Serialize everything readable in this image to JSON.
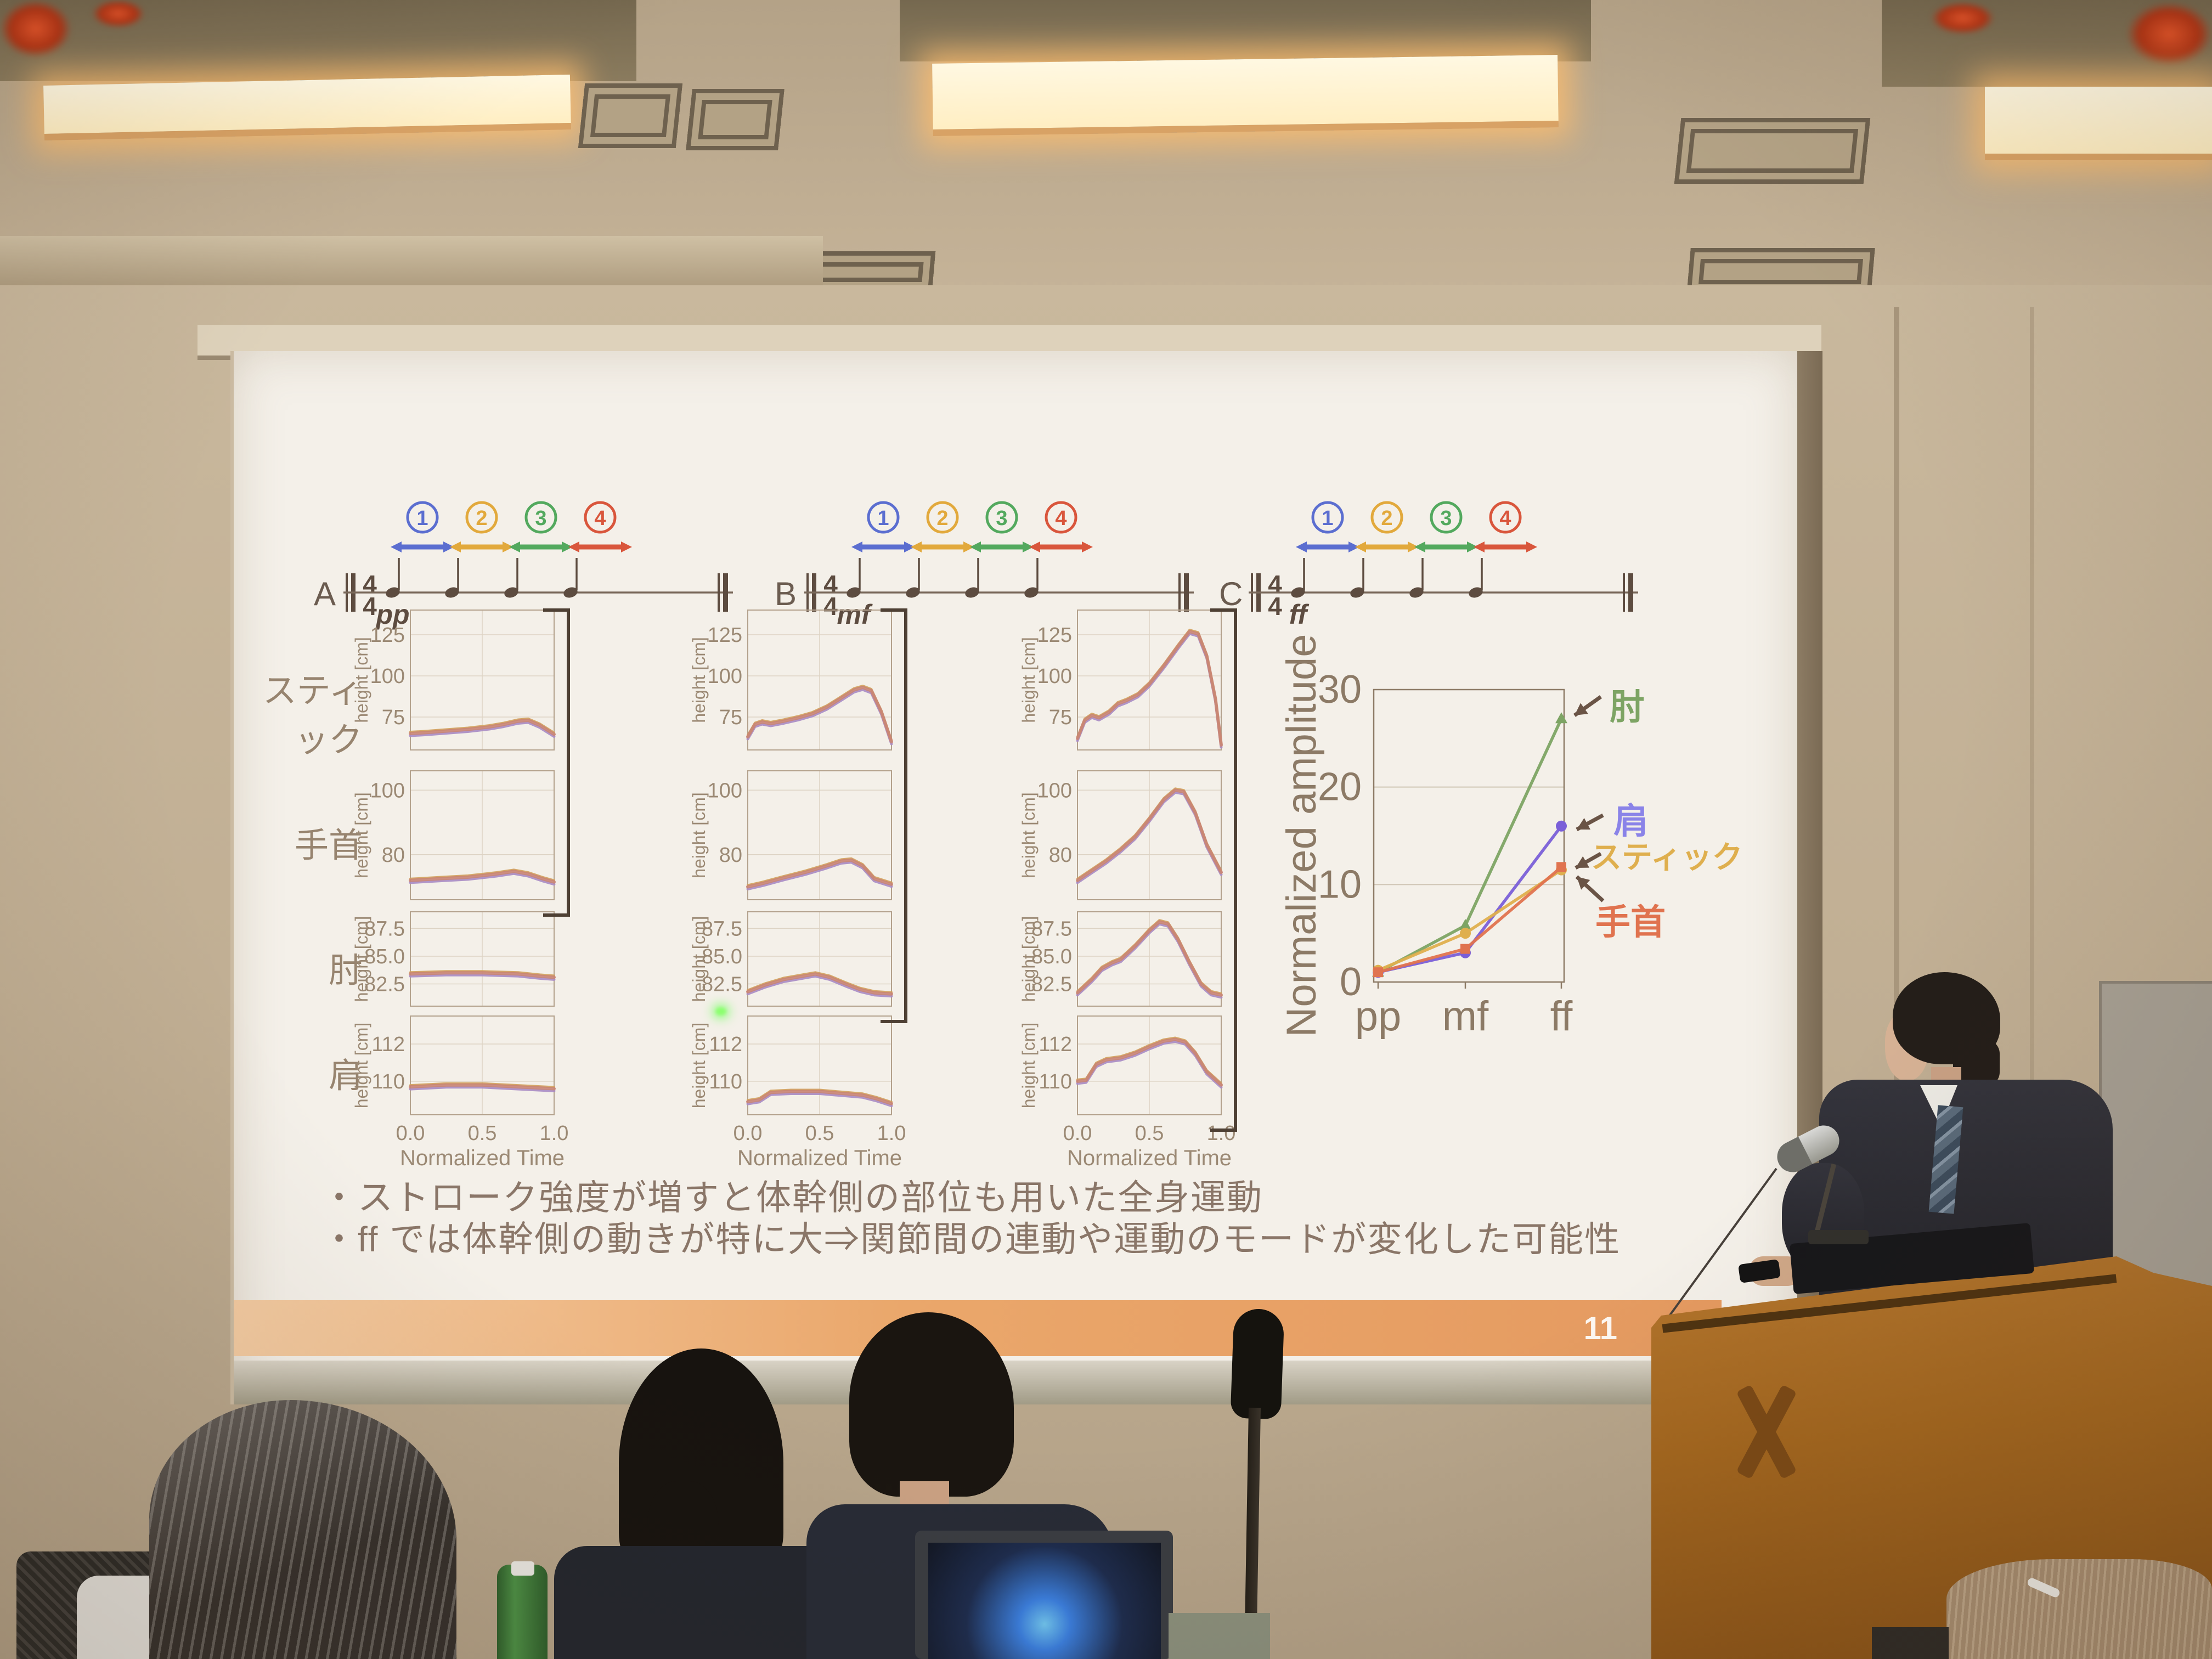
{
  "slide": {
    "page_number": "11",
    "bullets": [
      "・ストローク強度が増すと体幹側の部位も用いた全身運動",
      "・ff では体幹側の動きが特に大⇒関節間の連動や運動のモードが変化した可能性"
    ],
    "row_labels": [
      "スティック",
      "手首",
      "肘",
      "肩"
    ],
    "notation": {
      "sections": [
        {
          "label": "A",
          "dynamic": "pp"
        },
        {
          "label": "B",
          "dynamic": "mf"
        },
        {
          "label": "C",
          "dynamic": "ff"
        }
      ],
      "time_signature_top": "4",
      "time_signature_bottom": "4",
      "strokes": [
        {
          "number": "1",
          "color": "#5b6ed0"
        },
        {
          "number": "2",
          "color": "#e2a93c"
        },
        {
          "number": "3",
          "color": "#53a95e"
        },
        {
          "number": "4",
          "color": "#d9563c"
        }
      ]
    },
    "footer_color": "#e59a60"
  },
  "chart_data": {
    "small_multiples": {
      "type": "line",
      "columns": [
        "pp",
        "mf",
        "ff"
      ],
      "rows": [
        "スティック",
        "手首",
        "肘",
        "肩"
      ],
      "xlabel": "Normalized Time",
      "ylabel": "height [cm]",
      "xticks": [
        "0.0",
        "0.5",
        "1.0"
      ],
      "line_colors": [
        "#a98bc4",
        "#d2a05c",
        "#c98474"
      ],
      "cells": [
        {
          "row": "スティック",
          "col": "pp",
          "ylim": [
            55,
            140
          ],
          "yticks": [
            "75",
            "100",
            "125"
          ],
          "pts": [
            [
              0,
              65
            ],
            [
              0.1,
              65.5
            ],
            [
              0.25,
              66.5
            ],
            [
              0.4,
              67.5
            ],
            [
              0.55,
              69
            ],
            [
              0.65,
              70.5
            ],
            [
              0.75,
              72.5
            ],
            [
              0.82,
              73
            ],
            [
              0.9,
              70
            ],
            [
              1,
              64.5
            ]
          ]
        },
        {
          "row": "スティック",
          "col": "mf",
          "ylim": [
            55,
            140
          ],
          "yticks": [
            "75",
            "100",
            "125"
          ],
          "pts": [
            [
              0,
              63
            ],
            [
              0.05,
              70.5
            ],
            [
              0.1,
              72
            ],
            [
              0.16,
              71
            ],
            [
              0.25,
              72.5
            ],
            [
              0.35,
              74.5
            ],
            [
              0.45,
              77
            ],
            [
              0.55,
              81
            ],
            [
              0.65,
              86.5
            ],
            [
              0.74,
              91.5
            ],
            [
              0.8,
              93
            ],
            [
              0.86,
              91
            ],
            [
              0.93,
              78
            ],
            [
              1,
              60
            ]
          ]
        },
        {
          "row": "スティック",
          "col": "ff",
          "ylim": [
            55,
            140
          ],
          "yticks": [
            "75",
            "100",
            "125"
          ],
          "pts": [
            [
              0,
              62
            ],
            [
              0.05,
              73
            ],
            [
              0.1,
              76
            ],
            [
              0.15,
              74.5
            ],
            [
              0.22,
              78
            ],
            [
              0.28,
              83
            ],
            [
              0.34,
              85
            ],
            [
              0.42,
              88.5
            ],
            [
              0.5,
              95
            ],
            [
              0.6,
              106
            ],
            [
              0.7,
              118
            ],
            [
              0.78,
              127
            ],
            [
              0.84,
              125.5
            ],
            [
              0.9,
              112
            ],
            [
              0.96,
              86
            ],
            [
              1,
              58
            ]
          ]
        },
        {
          "row": "手首",
          "col": "pp",
          "ylim": [
            66,
            106
          ],
          "yticks": [
            "80",
            "100"
          ],
          "pts": [
            [
              0,
              72
            ],
            [
              0.2,
              72.5
            ],
            [
              0.4,
              73
            ],
            [
              0.6,
              74
            ],
            [
              0.72,
              74.8
            ],
            [
              0.82,
              74
            ],
            [
              0.92,
              72.5
            ],
            [
              1,
              71.5
            ]
          ]
        },
        {
          "row": "手首",
          "col": "mf",
          "ylim": [
            66,
            106
          ],
          "yticks": [
            "80",
            "100"
          ],
          "pts": [
            [
              0,
              70
            ],
            [
              0.1,
              71
            ],
            [
              0.25,
              72.8
            ],
            [
              0.4,
              74.5
            ],
            [
              0.55,
              76.5
            ],
            [
              0.65,
              78
            ],
            [
              0.72,
              78.3
            ],
            [
              0.8,
              76.5
            ],
            [
              0.88,
              72.5
            ],
            [
              1,
              70.8
            ]
          ]
        },
        {
          "row": "手首",
          "col": "ff",
          "ylim": [
            66,
            106
          ],
          "yticks": [
            "80",
            "100"
          ],
          "pts": [
            [
              0,
              72
            ],
            [
              0.1,
              75
            ],
            [
              0.2,
              78
            ],
            [
              0.3,
              81.5
            ],
            [
              0.4,
              85.5
            ],
            [
              0.5,
              91
            ],
            [
              0.6,
              97
            ],
            [
              0.68,
              100
            ],
            [
              0.74,
              99.5
            ],
            [
              0.82,
              93
            ],
            [
              0.9,
              83
            ],
            [
              1,
              74.5
            ]
          ]
        },
        {
          "row": "肘",
          "col": "pp",
          "ylim": [
            80.5,
            89
          ],
          "yticks": [
            "82.5",
            "85.0",
            "87.5"
          ],
          "pts": [
            [
              0,
              83.4
            ],
            [
              0.25,
              83.5
            ],
            [
              0.5,
              83.5
            ],
            [
              0.75,
              83.4
            ],
            [
              0.9,
              83.2
            ],
            [
              1,
              83.1
            ]
          ]
        },
        {
          "row": "肘",
          "col": "mf",
          "ylim": [
            80.5,
            89
          ],
          "yticks": [
            "82.5",
            "85.0",
            "87.5"
          ],
          "pts": [
            [
              0,
              81.8
            ],
            [
              0.12,
              82.4
            ],
            [
              0.25,
              82.9
            ],
            [
              0.38,
              83.2
            ],
            [
              0.47,
              83.4
            ],
            [
              0.57,
              83.1
            ],
            [
              0.68,
              82.5
            ],
            [
              0.78,
              82
            ],
            [
              0.88,
              81.7
            ],
            [
              1,
              81.6
            ]
          ]
        },
        {
          "row": "肘",
          "col": "ff",
          "ylim": [
            80.5,
            89
          ],
          "yticks": [
            "82.5",
            "85.0",
            "87.5"
          ],
          "pts": [
            [
              0,
              81.7
            ],
            [
              0.1,
              82.9
            ],
            [
              0.17,
              83.9
            ],
            [
              0.24,
              84.4
            ],
            [
              0.3,
              84.7
            ],
            [
              0.4,
              85.9
            ],
            [
              0.5,
              87.3
            ],
            [
              0.57,
              88.1
            ],
            [
              0.63,
              87.9
            ],
            [
              0.7,
              86.5
            ],
            [
              0.78,
              84.4
            ],
            [
              0.86,
              82.5
            ],
            [
              0.93,
              81.7
            ],
            [
              1,
              81.5
            ]
          ]
        },
        {
          "row": "肩",
          "col": "pp",
          "ylim": [
            108.2,
            113.5
          ],
          "yticks": [
            "110",
            "112"
          ],
          "pts": [
            [
              0,
              109.7
            ],
            [
              0.25,
              109.8
            ],
            [
              0.5,
              109.8
            ],
            [
              0.75,
              109.7
            ],
            [
              1,
              109.6
            ]
          ]
        },
        {
          "row": "肩",
          "col": "mf",
          "ylim": [
            108.2,
            113.5
          ],
          "yticks": [
            "110",
            "112"
          ],
          "pts": [
            [
              0,
              108.9
            ],
            [
              0.08,
              109
            ],
            [
              0.16,
              109.4
            ],
            [
              0.3,
              109.45
            ],
            [
              0.5,
              109.45
            ],
            [
              0.65,
              109.35
            ],
            [
              0.8,
              109.25
            ],
            [
              0.9,
              109.05
            ],
            [
              1,
              108.8
            ]
          ]
        },
        {
          "row": "肩",
          "col": "ff",
          "ylim": [
            108.2,
            113.5
          ],
          "yticks": [
            "110",
            "112"
          ],
          "pts": [
            [
              0,
              110
            ],
            [
              0.06,
              110.05
            ],
            [
              0.13,
              110.9
            ],
            [
              0.2,
              111.15
            ],
            [
              0.3,
              111.25
            ],
            [
              0.4,
              111.5
            ],
            [
              0.5,
              111.85
            ],
            [
              0.6,
              112.15
            ],
            [
              0.68,
              112.25
            ],
            [
              0.75,
              112.1
            ],
            [
              0.82,
              111.5
            ],
            [
              0.9,
              110.5
            ],
            [
              1,
              109.8
            ]
          ]
        }
      ],
      "brackets": [
        {
          "col": "pp",
          "rows": [
            "スティック",
            "手首"
          ]
        },
        {
          "col": "mf",
          "rows": [
            "スティック",
            "手首",
            "肘"
          ]
        },
        {
          "col": "ff",
          "rows": [
            "スティック",
            "手首",
            "肘",
            "肩"
          ]
        }
      ]
    },
    "summary": {
      "type": "line",
      "ylabel": "Normalized amplitude",
      "categories": [
        "pp",
        "mf",
        "ff"
      ],
      "ylim": [
        0,
        30
      ],
      "yticks": [
        "0",
        "10",
        "20",
        "30"
      ],
      "grid": "horizontal",
      "legend_position": "right",
      "series": [
        {
          "name": "肘",
          "color": "#7da464",
          "marker": "triangle",
          "values": [
            1,
            5.8,
            27
          ]
        },
        {
          "name": "肩",
          "color": "#7a5fd8",
          "marker": "circle",
          "values": [
            1,
            3,
            16
          ]
        },
        {
          "name": "スティック",
          "color": "#dfaf4e",
          "marker": "circle",
          "values": [
            1.2,
            5,
            11.5
          ]
        },
        {
          "name": "手首",
          "color": "#e0734f",
          "marker": "square",
          "values": [
            1,
            3.4,
            11.8
          ]
        }
      ]
    }
  }
}
